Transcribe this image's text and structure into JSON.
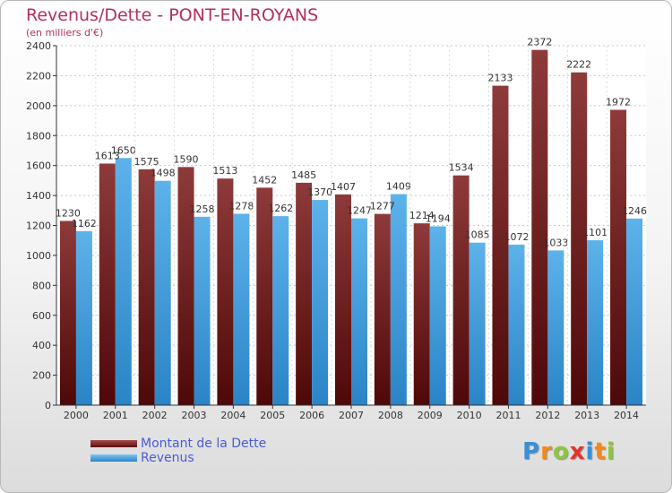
{
  "header": {
    "title": "Revenus/Dette - PONT-EN-ROYANS",
    "subtitle": "(en milliers d'€)"
  },
  "chart_data": {
    "type": "bar",
    "categories": [
      "2000",
      "2001",
      "2002",
      "2003",
      "2004",
      "2005",
      "2006",
      "2007",
      "2008",
      "2009",
      "2010",
      "2011",
      "2012",
      "2013",
      "2014"
    ],
    "series": [
      {
        "name": "Montant de la Dette",
        "values": [
          1230,
          1613,
          1575,
          1590,
          1513,
          1452,
          1485,
          1407,
          1277,
          1214,
          1534,
          2133,
          2372,
          2222,
          1972
        ],
        "color": "#7a1f1f"
      },
      {
        "name": "Revenus",
        "values": [
          1162,
          1650,
          1498,
          1258,
          1278,
          1262,
          1370,
          1247,
          1409,
          1194,
          1085,
          1072,
          1033,
          1101,
          1246
        ],
        "color": "#4aa3e0"
      }
    ],
    "data_labels": {
      "Montant de la Dette": [
        "1230",
        "1613",
        "1575",
        "1590",
        "1513",
        "1452",
        "1485",
        "1407",
        "1277",
        "1214",
        "1534",
        "2133",
        "2372",
        "2222",
        "1972"
      ],
      "Revenus": [
        "1162",
        "1650",
        "1498",
        "1258",
        "1278",
        "1262",
        "1370",
        "1247",
        "1409",
        "1194",
        "1085",
        "1072",
        "1033",
        "1101",
        "1246"
      ]
    },
    "ylim": [
      0,
      2400
    ],
    "yticks": [
      "0",
      "200",
      "400",
      "600",
      "800",
      "1000",
      "1200",
      "1400",
      "1600",
      "1800",
      "2000",
      "2200",
      "2400"
    ],
    "grid": true,
    "legend_position": "bottom-left"
  },
  "legend": {
    "items": [
      {
        "label": "Montant de la Dette",
        "color": "#7a1f1f"
      },
      {
        "label": "Revenus",
        "color": "#4aa3e0"
      }
    ]
  },
  "logo": {
    "letters": [
      "P",
      "r",
      "o",
      "x",
      "i",
      "t",
      "i"
    ]
  }
}
